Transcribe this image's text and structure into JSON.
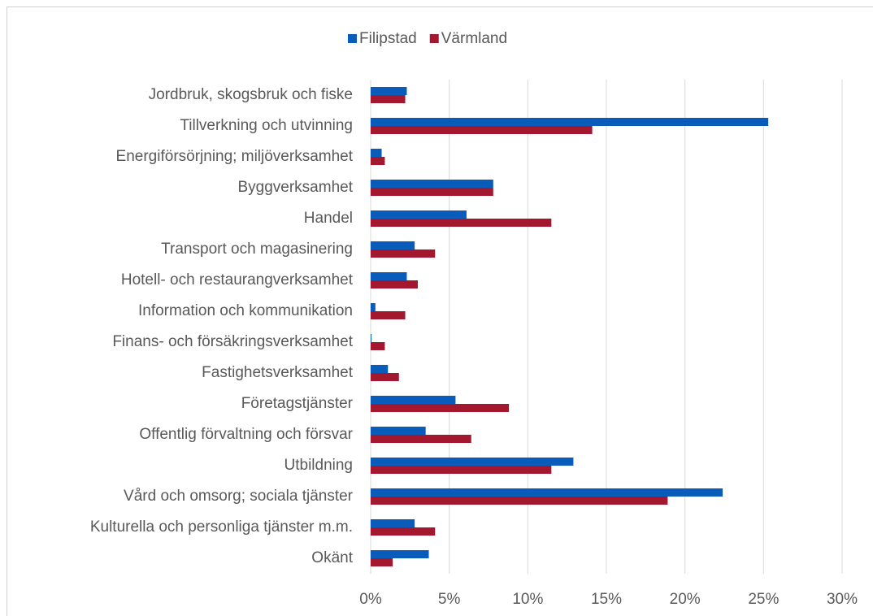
{
  "chart_data": {
    "type": "barh",
    "categories": [
      "Jordbruk, skogsbruk och fiske",
      "Tillverkning och utvinning",
      "Energiförsörjning; miljöverksamhet",
      "Byggverksamhet",
      "Handel",
      "Transport och magasinering",
      "Hotell- och restaurangverksamhet",
      "Information och kommunikation",
      "Finans- och försäkringsverksamhet",
      "Fastighetsverksamhet",
      "Företagstjänster",
      "Offentlig förvaltning och försvar",
      "Utbildning",
      "Vård och omsorg; sociala tjänster",
      "Kulturella och personliga tjänster m.m.",
      "Okänt"
    ],
    "series": [
      {
        "name": "Filipstad",
        "color": "#0a5cba",
        "values": [
          2.3,
          25.3,
          0.7,
          7.8,
          6.1,
          2.8,
          2.3,
          0.3,
          0.05,
          1.1,
          5.4,
          3.5,
          12.9,
          22.4,
          2.8,
          3.7
        ]
      },
      {
        "name": "Värmland",
        "color": "#a3182e",
        "values": [
          2.2,
          14.1,
          0.9,
          7.8,
          11.5,
          4.1,
          3.0,
          2.2,
          0.9,
          1.8,
          8.8,
          6.4,
          11.5,
          18.9,
          4.1,
          1.4
        ]
      }
    ],
    "xlim": [
      0,
      30
    ],
    "xticks": [
      {
        "value": 0,
        "label": "0%"
      },
      {
        "value": 5,
        "label": "5%"
      },
      {
        "value": 10,
        "label": "10%"
      },
      {
        "value": 15,
        "label": "15%"
      },
      {
        "value": 20,
        "label": "20%"
      },
      {
        "value": 25,
        "label": "25%"
      },
      {
        "value": 30,
        "label": "30%"
      }
    ],
    "grid": true,
    "legend": "top"
  }
}
